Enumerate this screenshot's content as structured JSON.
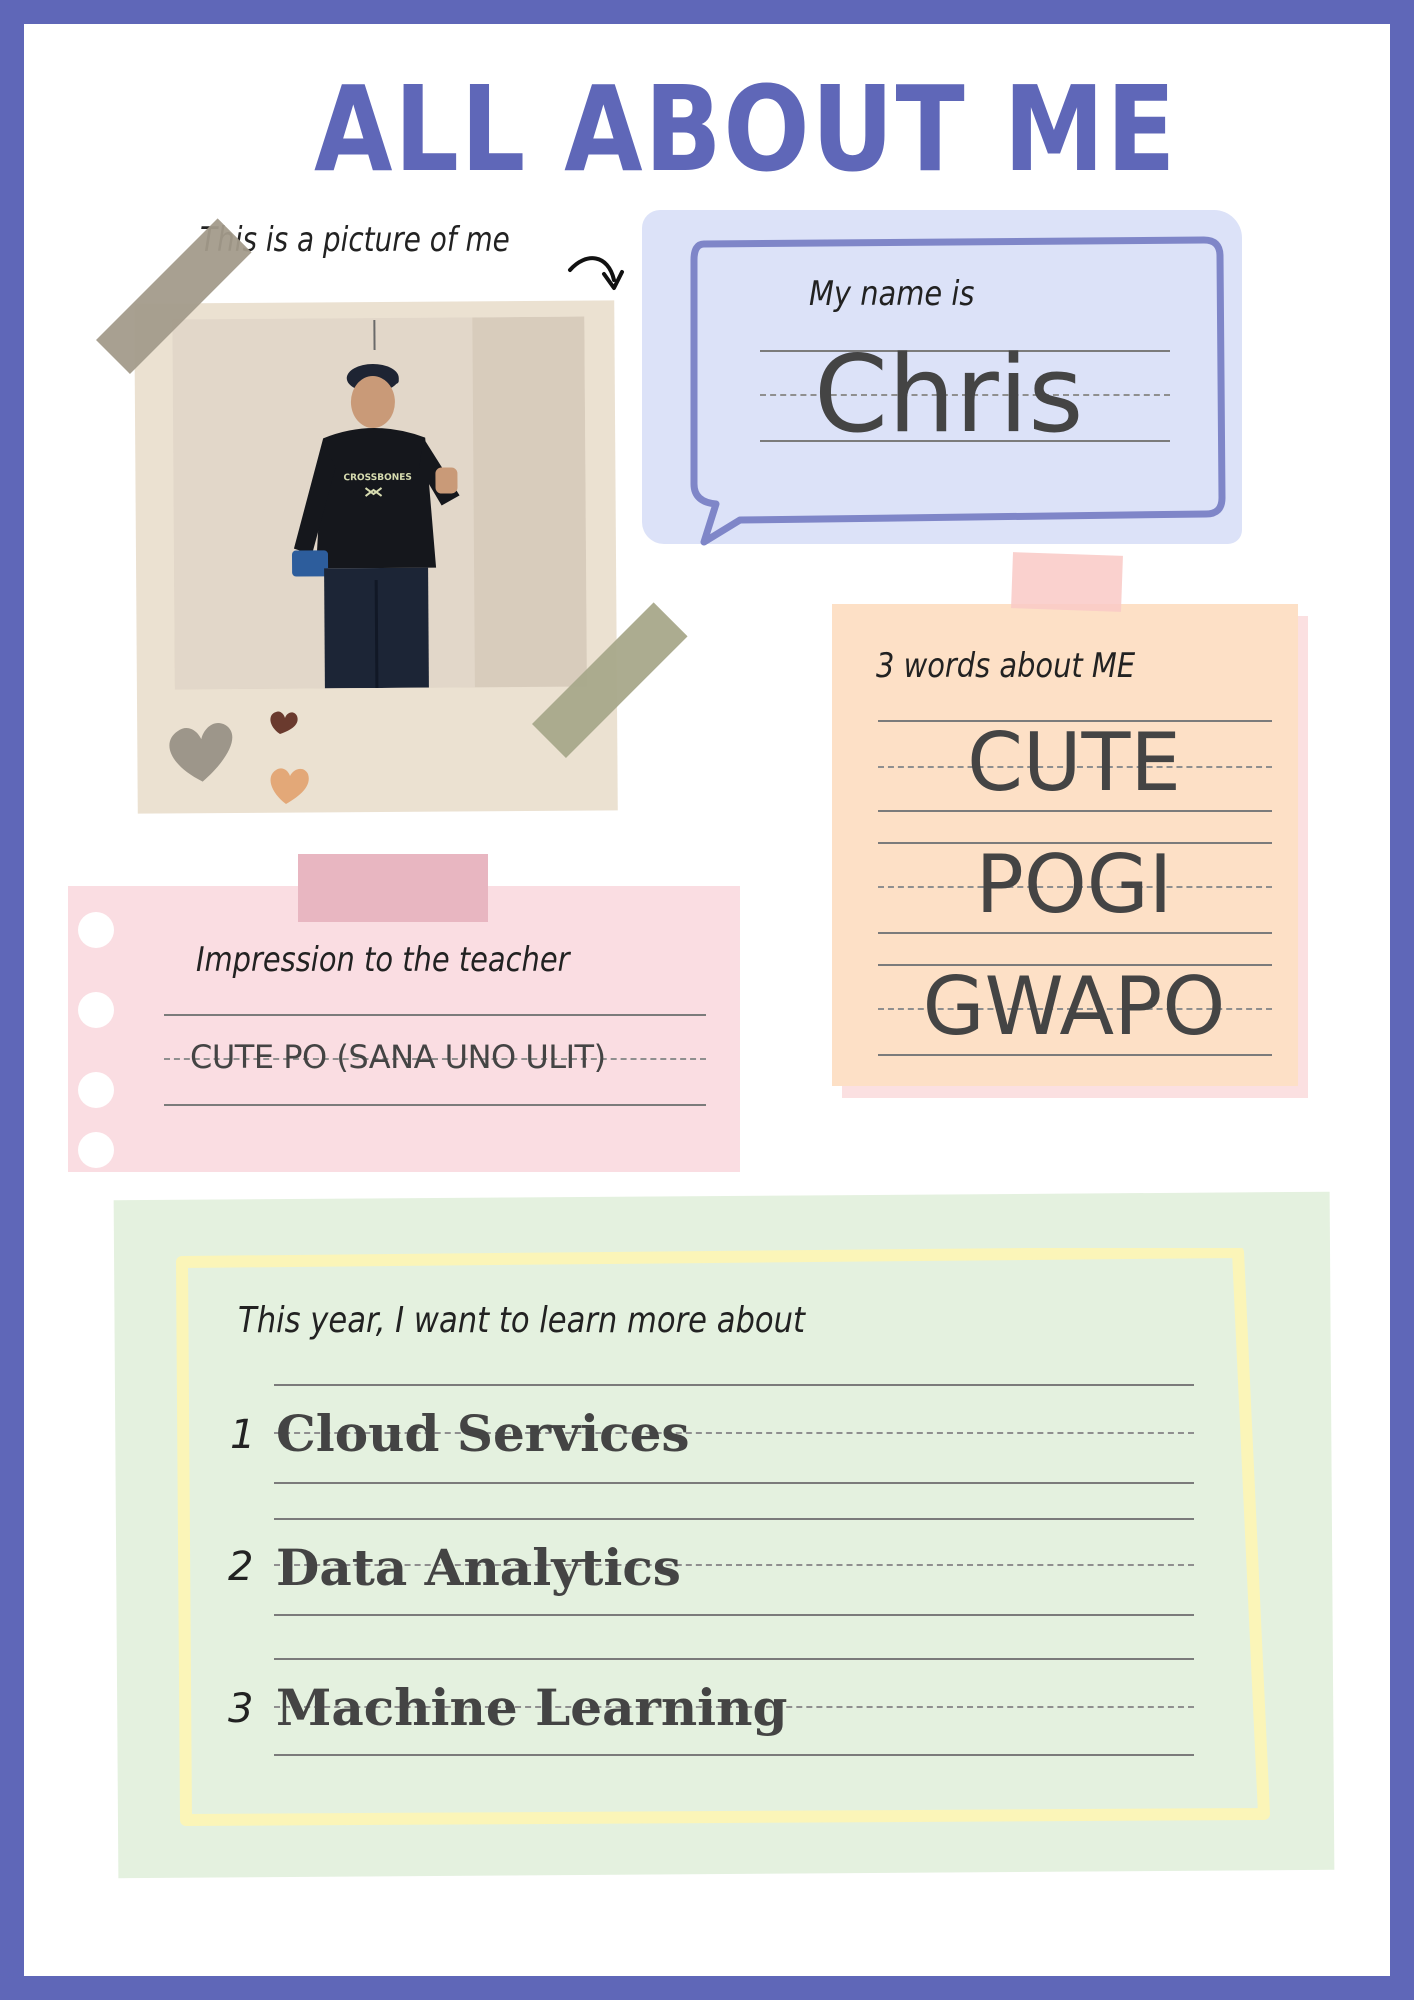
{
  "title": "ALL ABOUT ME",
  "photo": {
    "caption": "This is a picture of me",
    "shirt_text": "CROSSBONES"
  },
  "name": {
    "label": "My name is",
    "value": "Chris"
  },
  "words": {
    "label": "3 words about ME",
    "items": [
      "CUTE",
      "POGI",
      "GWAPO"
    ]
  },
  "impression": {
    "label": "Impression to the teacher",
    "value": "CUTE PO (SANA UNO ULIT)"
  },
  "learn": {
    "label": "This year, I want to learn more about",
    "items": [
      {
        "num": "1",
        "topic": "Cloud Services"
      },
      {
        "num": "2",
        "topic": "Data Analytics"
      },
      {
        "num": "3",
        "topic": "Machine Learning"
      }
    ]
  },
  "colors": {
    "border": "#5f67b8",
    "name_card": "#dce2f8",
    "words_card": "#fde0c6",
    "impression_card": "#fadde2",
    "learn_card": "#e4f1df",
    "learn_frame": "#fbf5b8"
  }
}
